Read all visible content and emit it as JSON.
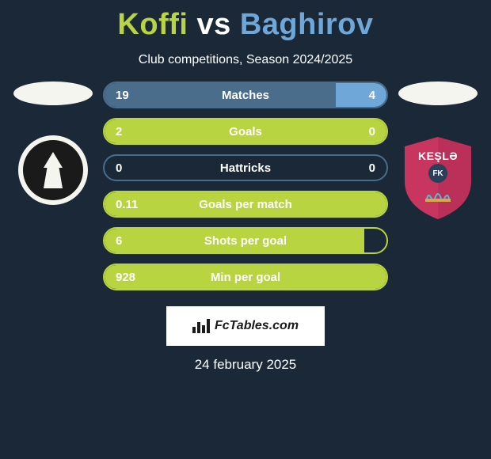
{
  "title_player1": "Koffi",
  "title_vs": "vs",
  "title_player2": "Baghirov",
  "title_color_p1": "#b8d440",
  "title_color_vs": "#ffffff",
  "title_color_p2": "#6fa8d8",
  "subtitle": "Club competitions, Season 2024/2025",
  "team_right": {
    "name": "KEŞLƏ",
    "sub": "FK",
    "shield_color": "#c8355f",
    "stripe_color": "#a82b4f"
  },
  "stats": [
    {
      "label": "Matches",
      "left_val": "19",
      "right_val": "4",
      "left_pct": 82,
      "right_pct": 18,
      "left_color": "#4a6d8c",
      "right_color": "#6fa8d8",
      "border_color": "#4a6d8c"
    },
    {
      "label": "Goals",
      "left_val": "2",
      "right_val": "0",
      "left_pct": 100,
      "right_pct": 0,
      "left_color": "#b8d440",
      "right_color": "#6fa8d8",
      "border_color": "#b8d440"
    },
    {
      "label": "Hattricks",
      "left_val": "0",
      "right_val": "0",
      "left_pct": 0,
      "right_pct": 0,
      "left_color": "#b8d440",
      "right_color": "#6fa8d8",
      "border_color": "#4a6d8c"
    },
    {
      "label": "Goals per match",
      "left_val": "0.11",
      "right_val": "",
      "left_pct": 100,
      "right_pct": 0,
      "left_color": "#b8d440",
      "right_color": "#6fa8d8",
      "border_color": "#b8d440"
    },
    {
      "label": "Shots per goal",
      "left_val": "6",
      "right_val": "",
      "left_pct": 92,
      "right_pct": 0,
      "left_color": "#b8d440",
      "right_color": "#6fa8d8",
      "border_color": "#b8d440"
    },
    {
      "label": "Min per goal",
      "left_val": "928",
      "right_val": "",
      "left_pct": 100,
      "right_pct": 0,
      "left_color": "#b8d440",
      "right_color": "#6fa8d8",
      "border_color": "#b8d440"
    }
  ],
  "attribution": "FcTables.com",
  "date": "24 february 2025"
}
